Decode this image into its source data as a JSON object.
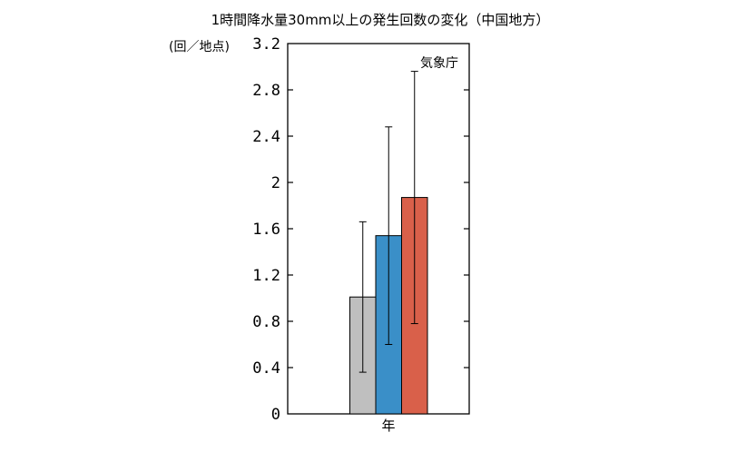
{
  "title": "1時間降水量30mm以上の発生回数の変化（中国地方）",
  "credit": "気象庁",
  "chart_data": {
    "type": "bar",
    "title": "1時間降水量30mm以上の発生回数の変化（中国地方）",
    "ylabel": "(回／地点)",
    "xlabel": "",
    "categories": [
      "年"
    ],
    "ylim": [
      0,
      3.2
    ],
    "yticks": [
      "0",
      "0.4",
      "0.8",
      "1.2",
      "1.6",
      "2",
      "2.4",
      "2.8",
      "3.2"
    ],
    "grid": false,
    "legend": "none",
    "series": [
      {
        "values": [
          1.01
        ],
        "error_low": [
          0.36
        ],
        "error_high": [
          1.66
        ],
        "color": "#bfbfbf"
      },
      {
        "values": [
          1.54
        ],
        "error_low": [
          0.6
        ],
        "error_high": [
          2.48
        ],
        "color": "#3a8fc8"
      },
      {
        "values": [
          1.87
        ],
        "error_low": [
          0.78
        ],
        "error_high": [
          2.96
        ],
        "color": "#d9604a"
      }
    ]
  }
}
